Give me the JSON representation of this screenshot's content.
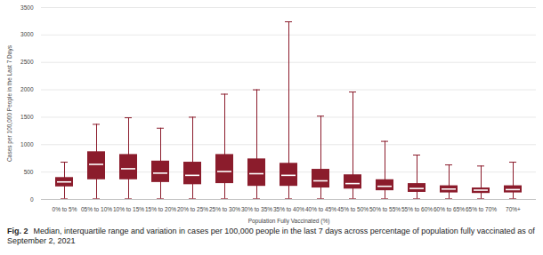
{
  "chart_data": {
    "type": "box",
    "caption_label": "Fig. 2",
    "caption": "Median, interquartile range and variation in cases per 100,000 people in the last 7 days across percentage of population fully vaccinated as of September 2, 2021",
    "x_label": "Population Fully Vaccinated (%)",
    "y_label": "Cases per 100,000 People in the Last 7 Days",
    "categories": [
      "0% to 5%",
      "05% to 10%",
      "10% to 15%",
      "15% to 20%",
      "20% to 25%",
      "25% to 30%",
      "30% to 35%",
      "35% to 40%",
      "40% to 45%",
      "45% to 50%",
      "50% to 55%",
      "55% to 60%",
      "60% to 65%",
      "65% to 70%",
      "70%+"
    ],
    "min": [
      10,
      10,
      10,
      10,
      10,
      10,
      10,
      10,
      10,
      10,
      10,
      10,
      10,
      10,
      10
    ],
    "q1": [
      230,
      360,
      360,
      310,
      270,
      290,
      240,
      240,
      210,
      190,
      160,
      130,
      120,
      110,
      120
    ],
    "median": [
      320,
      640,
      560,
      480,
      440,
      510,
      470,
      440,
      340,
      290,
      240,
      200,
      190,
      170,
      180
    ],
    "q3": [
      400,
      870,
      820,
      700,
      680,
      820,
      740,
      660,
      550,
      450,
      360,
      290,
      250,
      210,
      250
    ],
    "max": [
      680,
      1370,
      1490,
      1300,
      1500,
      1920,
      2000,
      3240,
      1520,
      1960,
      1060,
      810,
      630,
      610,
      680
    ],
    "color": "#8b1c2c",
    "ylim": [
      0,
      3500
    ],
    "yticks": [
      0,
      500,
      1000,
      1500,
      2000,
      2500,
      3000,
      3500
    ],
    "grid": true
  }
}
